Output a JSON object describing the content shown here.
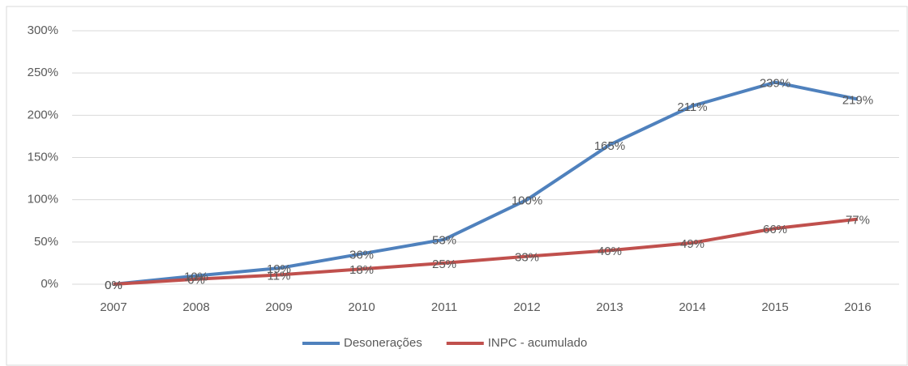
{
  "chart_data": {
    "type": "line",
    "categories": [
      "2007",
      "2008",
      "2009",
      "2010",
      "2011",
      "2012",
      "2013",
      "2014",
      "2015",
      "2016"
    ],
    "series": [
      {
        "name": "Desonerações",
        "color": "#4f81bd",
        "values": [
          0,
          10,
          19,
          36,
          53,
          100,
          165,
          211,
          239,
          219
        ],
        "value_labels": [
          "0%",
          "10%",
          "19%",
          "36%",
          "53%",
          "100%",
          "165%",
          "211%",
          "239%",
          "219%"
        ]
      },
      {
        "name": "INPC - acumulado",
        "color": "#c0504d",
        "values": [
          0,
          6,
          11,
          18,
          25,
          33,
          40,
          49,
          66,
          77
        ],
        "value_labels": [
          "0%",
          "6%",
          "11%",
          "18%",
          "25%",
          "33%",
          "40%",
          "49%",
          "66%",
          "77%"
        ]
      }
    ],
    "ylim": [
      0,
      300
    ],
    "yticks": [
      {
        "value": 0,
        "label": "0%"
      },
      {
        "value": 50,
        "label": "50%"
      },
      {
        "value": 100,
        "label": "100%"
      },
      {
        "value": 150,
        "label": "150%"
      },
      {
        "value": 200,
        "label": "200%"
      },
      {
        "value": 250,
        "label": "250%"
      },
      {
        "value": 300,
        "label": "300%"
      }
    ],
    "grid": true,
    "legend": "bottom"
  }
}
